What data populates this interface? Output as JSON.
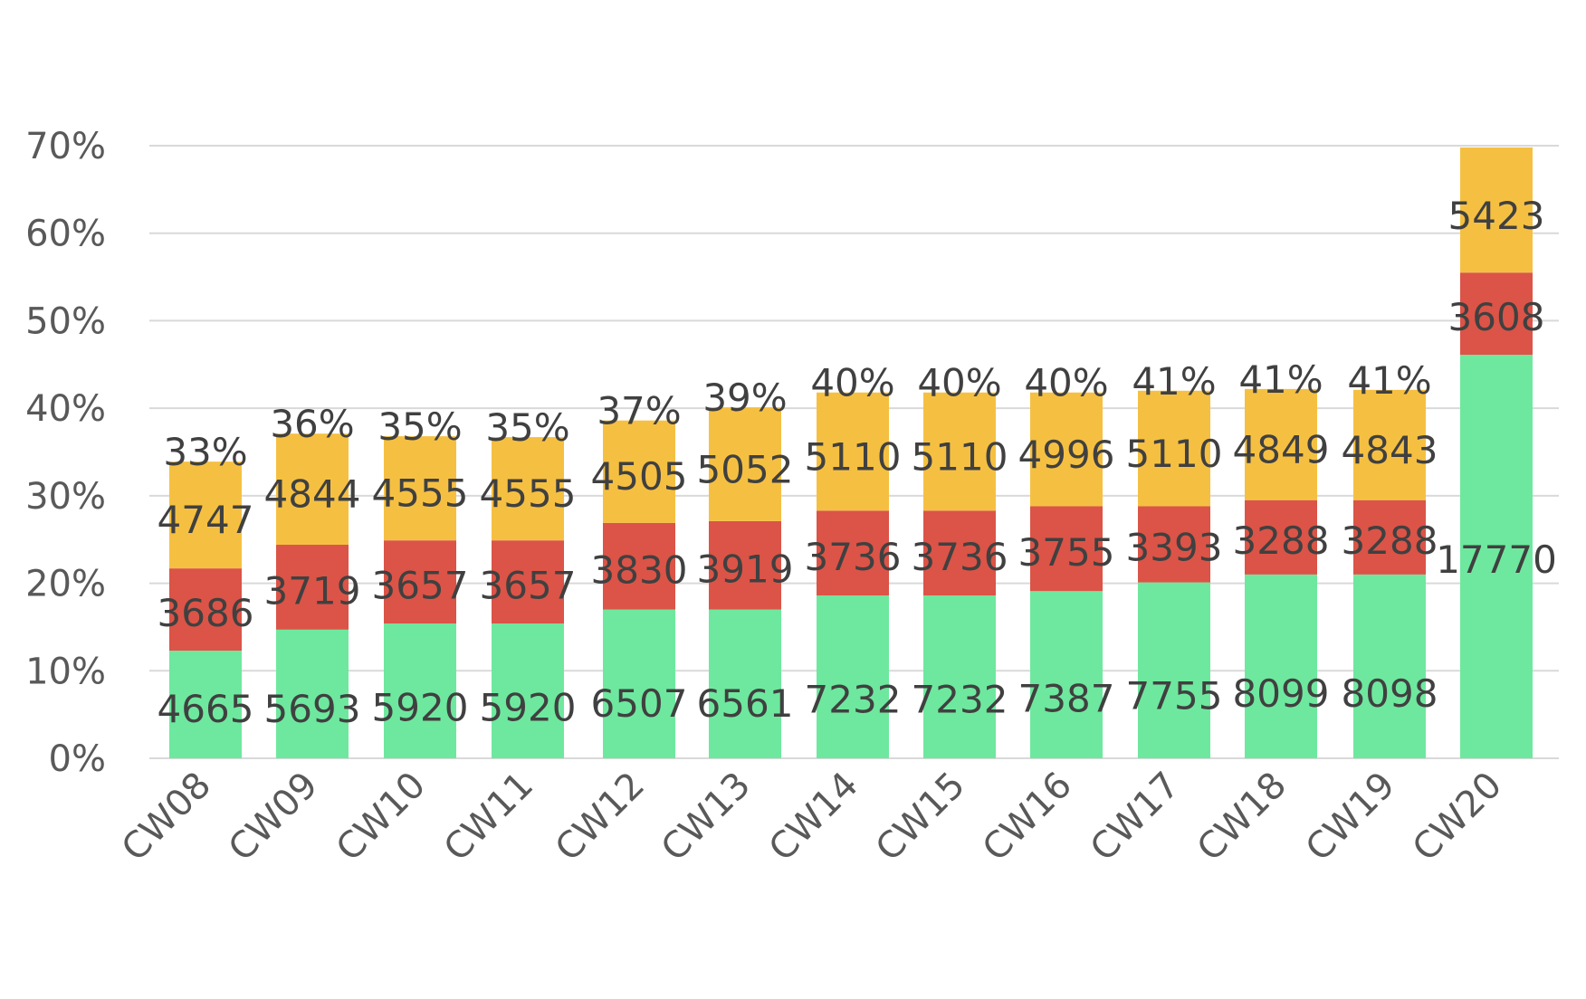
{
  "chart_data": {
    "type": "bar",
    "stacked": true,
    "title": "",
    "xlabel": "",
    "ylabel": "",
    "ylim": [
      0,
      70
    ],
    "y_ticks": [
      "0%",
      "10%",
      "20%",
      "30%",
      "40%",
      "50%",
      "60%",
      "70%"
    ],
    "y_tick_values": [
      0,
      10,
      20,
      30,
      40,
      50,
      60,
      70
    ],
    "grid": true,
    "categories": [
      "CW08",
      "CW09",
      "CW10",
      "CW11",
      "CW12",
      "CW13",
      "CW14",
      "CW15",
      "CW16",
      "CW17",
      "CW18",
      "CW19",
      "CW20"
    ],
    "series": [
      {
        "name": "green",
        "color": "#6ee89e",
        "heights_pct": [
          12.3,
          14.7,
          15.4,
          15.4,
          17.0,
          17.0,
          18.6,
          18.6,
          19.1,
          20.1,
          21.0,
          21.0,
          46.1
        ],
        "labels": [
          "4665",
          "5693",
          "5920",
          "5920",
          "6507",
          "6561",
          "7232",
          "7232",
          "7387",
          "7755",
          "8099",
          "8098",
          "17770"
        ]
      },
      {
        "name": "red",
        "color": "#db5447",
        "heights_pct": [
          9.4,
          9.7,
          9.5,
          9.5,
          9.9,
          10.1,
          9.7,
          9.7,
          9.7,
          8.7,
          8.5,
          8.5,
          9.4
        ],
        "labels": [
          "3686",
          "3719",
          "3657",
          "3657",
          "3830",
          "3919",
          "3736",
          "3736",
          "3755",
          "3393",
          "3288",
          "3288",
          "3608"
        ]
      },
      {
        "name": "yellow",
        "color": "#f5c042",
        "heights_pct": [
          12.2,
          12.7,
          11.9,
          11.8,
          11.7,
          13.0,
          13.5,
          13.5,
          13.0,
          13.2,
          12.7,
          12.6,
          14.3
        ],
        "labels": [
          "4747",
          "4844",
          "4555",
          "4555",
          "4505",
          "5052",
          "5110",
          "5110",
          "4996",
          "5110",
          "4849",
          "4843",
          "5423"
        ]
      }
    ],
    "totals": [
      "33%",
      "36%",
      "35%",
      "35%",
      "37%",
      "39%",
      "40%",
      "40%",
      "40%",
      "41%",
      "41%",
      "41%",
      ""
    ]
  }
}
